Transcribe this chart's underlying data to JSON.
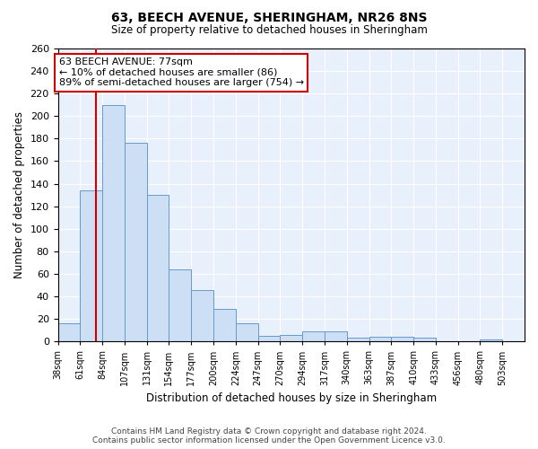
{
  "title": "63, BEECH AVENUE, SHERINGHAM, NR26 8NS",
  "subtitle": "Size of property relative to detached houses in Sheringham",
  "xlabel": "Distribution of detached houses by size in Sheringham",
  "ylabel": "Number of detached properties",
  "bar_labels": [
    "38sqm",
    "61sqm",
    "84sqm",
    "107sqm",
    "131sqm",
    "154sqm",
    "177sqm",
    "200sqm",
    "224sqm",
    "247sqm",
    "270sqm",
    "294sqm",
    "317sqm",
    "340sqm",
    "363sqm",
    "387sqm",
    "410sqm",
    "433sqm",
    "456sqm",
    "480sqm",
    "503sqm"
  ],
  "bar_values": [
    16,
    134,
    210,
    176,
    130,
    64,
    46,
    29,
    16,
    5,
    6,
    9,
    9,
    3,
    4,
    4,
    3,
    0,
    0,
    2,
    0
  ],
  "bar_color": "#ccdff5",
  "bar_edge_color": "#6699cc",
  "background_color": "#e8f0fb",
  "grid_color": "#ffffff",
  "ylim": [
    0,
    260
  ],
  "yticks": [
    0,
    20,
    40,
    60,
    80,
    100,
    120,
    140,
    160,
    180,
    200,
    220,
    240,
    260
  ],
  "annotation_text": "63 BEECH AVENUE: 77sqm\n← 10% of detached houses are smaller (86)\n89% of semi-detached houses are larger (754) →",
  "annotation_box_color": "#ffffff",
  "annotation_box_edge": "#cc0000",
  "property_line_color": "#cc0000",
  "copyright_text": "Contains HM Land Registry data © Crown copyright and database right 2024.\nContains public sector information licensed under the Open Government Licence v3.0."
}
